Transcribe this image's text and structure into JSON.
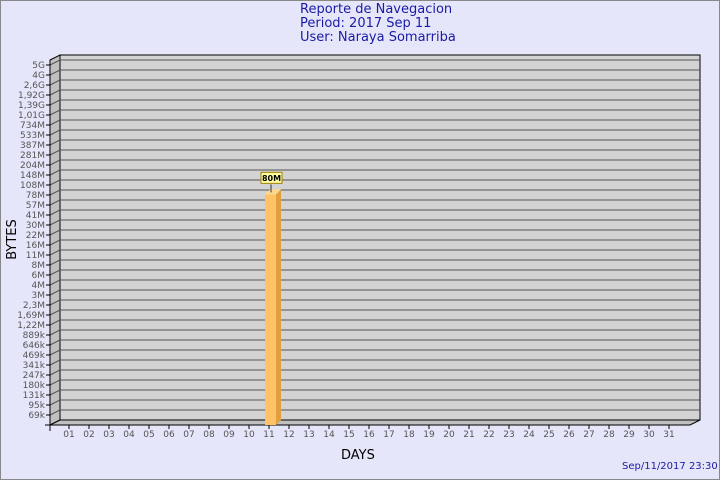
{
  "chart_data": {
    "type": "bar",
    "title": "Reporte de Navegacion",
    "subtitle": [
      "Period: 2017 Sep 11",
      "User: Naraya Somarriba"
    ],
    "xlabel": "DAYS",
    "ylabel": "BYTES",
    "yscale": "log",
    "ytick_labels": [
      "5G",
      "4G",
      "2,6G",
      "1,92G",
      "1,39G",
      "1,01G",
      "734M",
      "533M",
      "387M",
      "281M",
      "204M",
      "148M",
      "108M",
      "78M",
      "57M",
      "41M",
      "30M",
      "22M",
      "16M",
      "11M",
      "8M",
      "6M",
      "4M",
      "3M",
      "2,3M",
      "1,69M",
      "1,22M",
      "889k",
      "646k",
      "469k",
      "341k",
      "247k",
      "180k",
      "131k",
      "95k",
      "69k"
    ],
    "categories": [
      "01",
      "02",
      "03",
      "04",
      "05",
      "06",
      "07",
      "08",
      "09",
      "10",
      "11",
      "12",
      "13",
      "14",
      "15",
      "16",
      "17",
      "18",
      "19",
      "20",
      "21",
      "22",
      "23",
      "24",
      "25",
      "26",
      "27",
      "28",
      "29",
      "30",
      "31"
    ],
    "values": [
      0,
      0,
      0,
      0,
      0,
      0,
      0,
      0,
      0,
      0,
      80000000,
      0,
      0,
      0,
      0,
      0,
      0,
      0,
      0,
      0,
      0,
      0,
      0,
      0,
      0,
      0,
      0,
      0,
      0,
      0,
      0
    ],
    "data_labels": {
      "11": "80M"
    },
    "grid": true,
    "colors": {
      "bar": "#ffc266",
      "bar_side": "#e0a040",
      "plot": "#d3d3d3",
      "background": "#e6e6fa",
      "title": "#1a1aa6"
    }
  },
  "footer": {
    "timestamp": "Sep/11/2017 23:30"
  }
}
